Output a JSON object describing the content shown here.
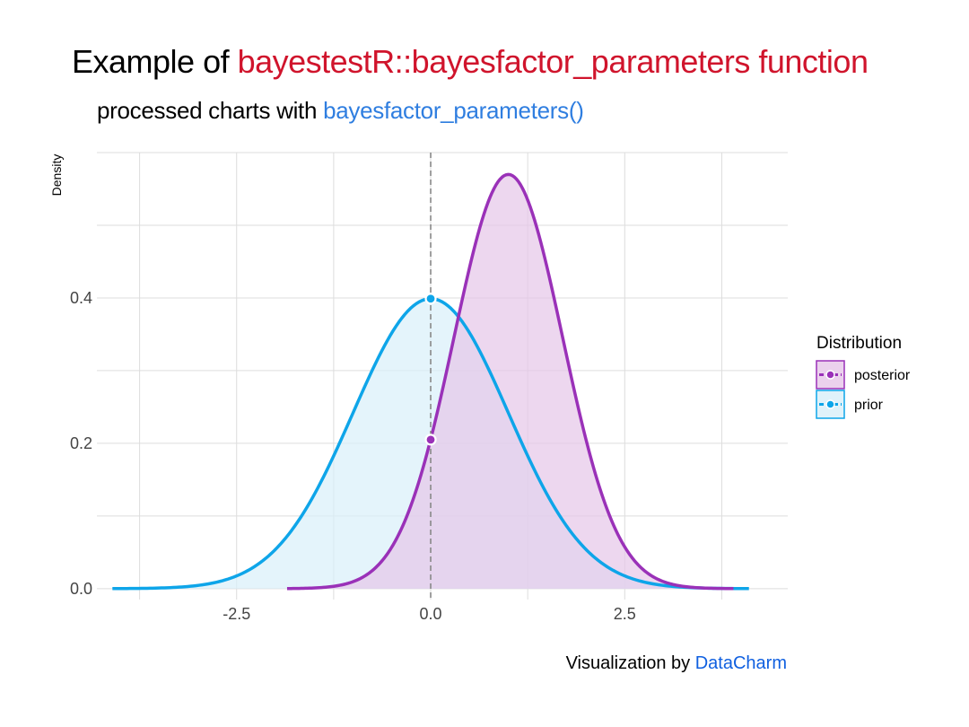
{
  "title": {
    "prefix": "Example of ",
    "highlight": "bayestestR::bayesfactor_parameters function",
    "highlight_color": "#d0142c"
  },
  "subtitle": {
    "prefix": "processed charts with ",
    "highlight": "bayesfactor_parameters()",
    "highlight_color": "#2f7ee0"
  },
  "caption": {
    "prefix": "Visualization by ",
    "highlight": "DataCharm",
    "highlight_color": "#1060e0"
  },
  "chart_data": {
    "type": "area",
    "ylabel": "Density",
    "xlabel": "",
    "xlim": [
      -4.3,
      4.6
    ],
    "ylim": [
      -0.015,
      0.6
    ],
    "x_ticks": [
      {
        "value": -2.5,
        "label": "-2.5"
      },
      {
        "value": 0,
        "label": "0.0"
      },
      {
        "value": 2.5,
        "label": "2.5"
      }
    ],
    "y_ticks": [
      {
        "value": 0,
        "label": "0.0"
      },
      {
        "value": 0.2,
        "label": "0.2"
      },
      {
        "value": 0.4,
        "label": "0.4"
      }
    ],
    "grid": true,
    "reference_line": {
      "x": 0,
      "style": "dashed",
      "color": "#888888"
    },
    "legend": {
      "title": "Distribution",
      "position": "right",
      "entries": [
        "posterior",
        "prior"
      ]
    },
    "series": [
      {
        "name": "prior",
        "distribution": "normal",
        "mean": 0,
        "sd": 1,
        "x_range": [
          -4.1,
          4.1
        ],
        "color": "#0ea5e9",
        "fill": "#d8eff9",
        "point": {
          "x": 0,
          "y": 0.399
        }
      },
      {
        "name": "posterior",
        "distribution": "normal",
        "mean": 1.0,
        "sd": 0.7,
        "x_range": [
          -1.85,
          3.9
        ],
        "color": "#9a31b8",
        "fill": "#e6c6e8",
        "point": {
          "x": 0,
          "y": 0.205
        }
      }
    ]
  }
}
